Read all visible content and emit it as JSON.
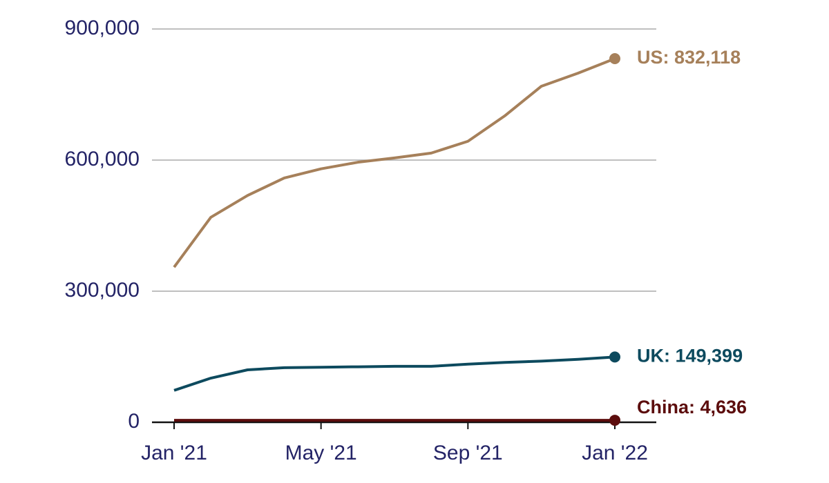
{
  "chart_data": {
    "type": "line",
    "categories": [
      "Jan '21",
      null,
      null,
      null,
      "May '21",
      null,
      null,
      null,
      "Sep '21",
      null,
      null,
      null,
      "Jan '22"
    ],
    "series": [
      {
        "name": "US",
        "color": "#a6805a",
        "values": [
          355000,
          469000,
          519000,
          559000,
          580000,
          595000,
          605000,
          616000,
          643000,
          701000,
          769000,
          799000,
          832118
        ],
        "value_labels": [
          null,
          null,
          null,
          null,
          null,
          null,
          null,
          null,
          null,
          null,
          null,
          null,
          "US: 832,118"
        ]
      },
      {
        "name": "UK",
        "color": "#0d4a5e",
        "values": [
          73000,
          101000,
          120000,
          125000,
          126000,
          127000,
          128000,
          128000,
          133000,
          137000,
          140000,
          144000,
          149399
        ],
        "value_labels": [
          null,
          null,
          null,
          null,
          null,
          null,
          null,
          null,
          null,
          null,
          null,
          null,
          "UK: 149,399"
        ]
      },
      {
        "name": "China",
        "color": "#5c0d0d",
        "values": [
          4636,
          4636,
          4636,
          4636,
          4636,
          4636,
          4636,
          4636,
          4636,
          4636,
          4636,
          4636,
          4636
        ],
        "value_labels": [
          null,
          null,
          null,
          null,
          null,
          null,
          null,
          null,
          null,
          null,
          null,
          null,
          "China: 4,636"
        ]
      }
    ],
    "ylim": [
      0,
      900000
    ],
    "yticks": [
      {
        "value": 0,
        "label": "0"
      },
      {
        "value": 300000,
        "label": "300,000"
      },
      {
        "value": 600000,
        "label": "600,000"
      },
      {
        "value": 900000,
        "label": "900,000"
      }
    ],
    "grid": true
  }
}
